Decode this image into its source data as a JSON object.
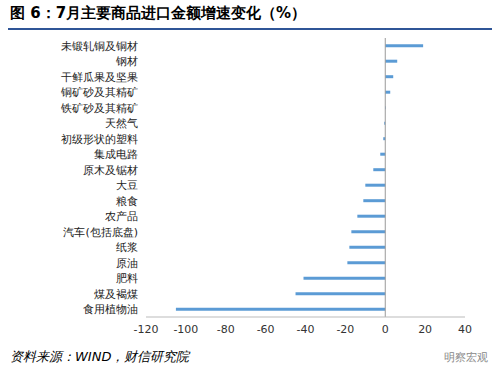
{
  "chart_data": {
    "type": "bar",
    "title": "图 6：7月主要商品进口金额增速变化（%）",
    "source": "资料来源：WIND，财信研究院",
    "watermark": "明察宏观",
    "orientation": "horizontal",
    "categories": [
      "未锻轧铜及铜材",
      "钢材",
      "干鲜瓜果及坚果",
      "铜矿砂及其精矿",
      "铁矿砂及其精矿",
      "天然气",
      "初级形状的塑料",
      "集成电路",
      "原木及锯材",
      "大豆",
      "粮食",
      "农产品",
      "汽车(包括底盘)",
      "纸浆",
      "原油",
      "肥料",
      "煤及褐煤",
      "食用植物油"
    ],
    "values": [
      19,
      6,
      4,
      2.5,
      0.3,
      -0.5,
      -1,
      -2.5,
      -6,
      -10,
      -11,
      -14,
      -17,
      -18,
      -19,
      -41,
      -45,
      -105
    ],
    "color": "#5b9bd5",
    "xlim": [
      -120,
      40
    ],
    "xticks": [
      -120,
      -100,
      -80,
      -60,
      -40,
      -20,
      0,
      20,
      40
    ],
    "grid": false
  }
}
